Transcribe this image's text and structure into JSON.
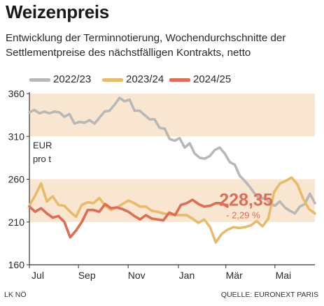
{
  "header": {
    "title": "Weizenpreis",
    "subtitle": "Entwicklung der Terminnotierung, Wochendurchschnitte der Settlementpreise des nächstfälligen Kontrakts, netto"
  },
  "footer": {
    "source_left": "LK NÖ",
    "source_right": "QUELLE: EURONEXT PARIS"
  },
  "chart_data": {
    "type": "line",
    "unit_label_line1": "EUR",
    "unit_label_line2": "pro t",
    "ylim": [
      160,
      360
    ],
    "yticks": [
      160,
      210,
      260,
      310,
      360
    ],
    "xlim": [
      0,
      50
    ],
    "x_tick_labels": [
      {
        "label": "Jul",
        "x": 0
      },
      {
        "label": "Sep",
        "x": 8.6
      },
      {
        "label": "Nov",
        "x": 17.3
      },
      {
        "label": "Jan",
        "x": 26.1
      },
      {
        "label": "Mär",
        "x": 34.4
      },
      {
        "label": "Mai",
        "x": 43.0
      }
    ],
    "bands": [
      [
        210,
        260
      ],
      [
        310,
        360
      ]
    ],
    "colors": {
      "band": "#f8e6d0",
      "axis": "#333333",
      "annotation": "#e06c54"
    },
    "annotation": {
      "value_text": "228,35",
      "change_text": "- 2,29 %",
      "x": 33.0,
      "y": 234
    },
    "series": [
      {
        "name": "2022/23",
        "color": "#b8b8b8",
        "values": [
          338,
          341,
          337,
          339,
          337,
          339,
          338,
          333,
          336,
          325,
          327,
          326,
          329,
          325,
          332,
          339,
          340,
          347,
          355,
          351,
          353,
          340,
          340,
          335,
          330,
          330,
          320,
          319,
          307,
          305,
          308,
          297,
          302,
          290,
          285,
          284,
          287,
          294,
          297,
          290,
          280,
          277,
          264,
          258,
          251,
          243,
          237,
          238,
          232,
          229,
          234,
          227,
          223,
          220,
          228,
          231,
          243,
          232
        ]
      },
      {
        "name": "2023/24",
        "color": "#e8bb6a",
        "values": [
          229,
          241,
          255,
          234,
          240,
          230,
          229,
          222,
          216,
          230,
          233,
          232,
          238,
          229,
          224,
          227,
          231,
          235,
          232,
          228,
          228,
          223,
          222,
          220,
          219,
          218,
          218,
          218,
          214,
          209,
          213,
          204,
          186,
          196,
          201,
          204,
          203,
          204,
          206,
          211,
          205,
          214,
          245,
          255,
          258,
          262,
          254,
          237,
          225,
          220
        ]
      },
      {
        "name": "2024/25",
        "color": "#e06c54",
        "values": [
          228,
          222,
          226,
          220,
          215,
          217,
          210,
          192,
          200,
          210,
          224,
          224,
          222,
          231,
          226,
          227,
          225,
          222,
          217,
          213,
          218,
          214,
          213,
          212,
          221,
          218,
          230,
          232,
          236,
          231,
          228,
          229,
          232,
          232,
          228
        ]
      }
    ]
  }
}
